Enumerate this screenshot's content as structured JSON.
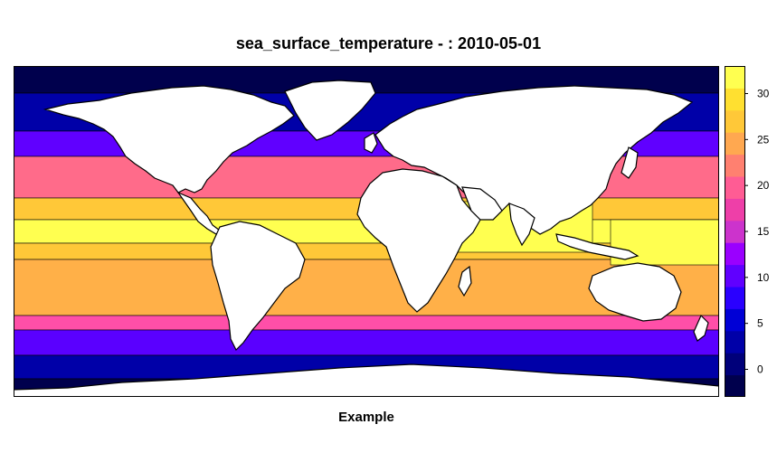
{
  "title": "sea_surface_temperature - : 2010-05-01",
  "subtitle": "Example",
  "colorbar": {
    "ticks": [
      "0",
      "5",
      "10",
      "15",
      "20",
      "25",
      "30"
    ],
    "range": [
      -3,
      33
    ],
    "band_colors": [
      "#00004d",
      "#00007a",
      "#0000a8",
      "#0000d6",
      "#2a00ff",
      "#6000ff",
      "#9a00ff",
      "#cc33cc",
      "#ee3fa8",
      "#ff5c94",
      "#ff8070",
      "#ffa850",
      "#ffc838",
      "#ffe030",
      "#ffff50"
    ]
  },
  "map": {
    "ocean_zone_colors": {
      "polar_north": "#00004d",
      "subpolar_north": "#0000a8",
      "temperate_north": "#6000ff",
      "warm_north": "#ff6b8a",
      "subtropical": "#ffc838",
      "tropical": "#ffff50",
      "warm_south": "#ffb048",
      "temperate_south": "#ff4fa8",
      "cool_south": "#5a00ff",
      "subpolar_south": "#0000a8",
      "polar_south": "#00004d"
    },
    "land_color": "#ffffff"
  }
}
